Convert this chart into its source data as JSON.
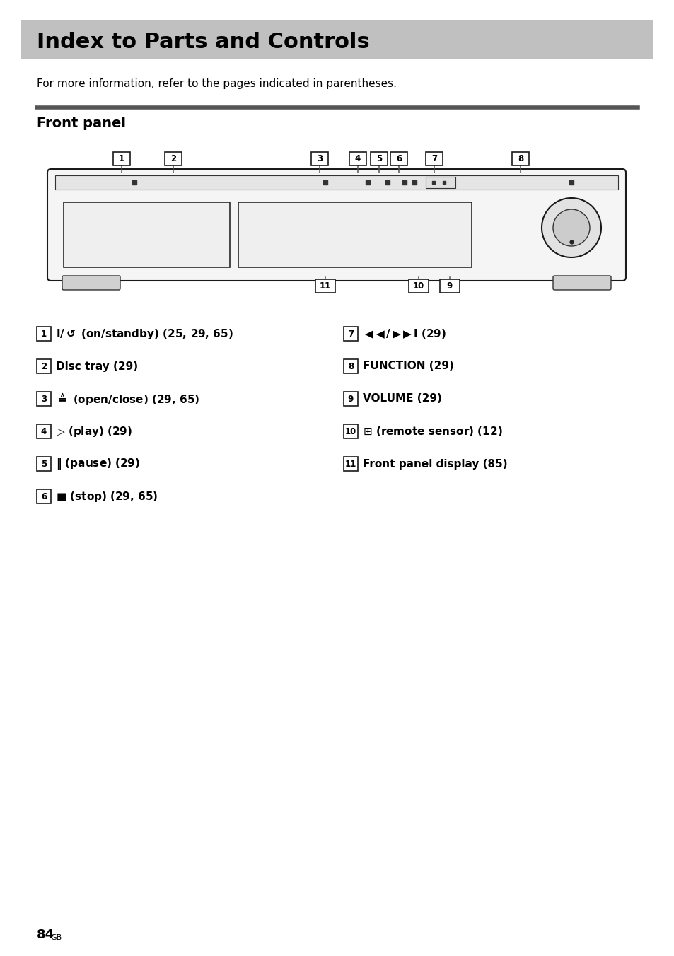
{
  "title": "Index to Parts and Controls",
  "title_bg": "#c8c8c8",
  "subtitle": "For more information, refer to the pages indicated in parentheses.",
  "section": "Front panel",
  "page_num": "84",
  "page_suffix": "GB",
  "bg_color": "#ffffff",
  "text_color": "#000000",
  "header_bg": "#c0c0c0",
  "divider_color": "#555555"
}
